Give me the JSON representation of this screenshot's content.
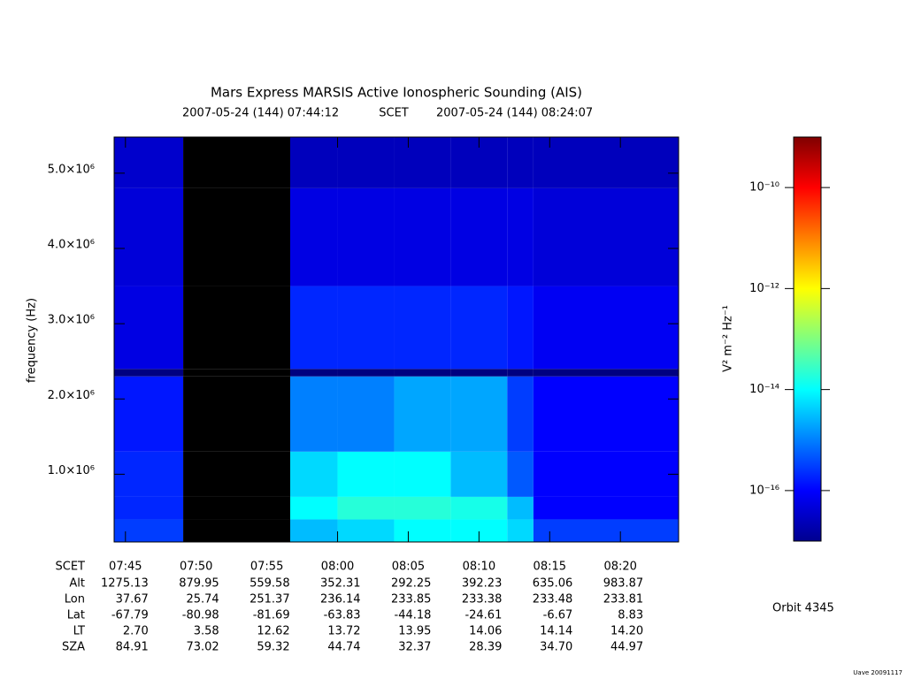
{
  "chart_data": {
    "type": "heatmap",
    "title": "Mars Express MARSIS Active Ionospheric Sounding (AIS)",
    "subtitle": {
      "start": "2007-05-24 (144) 07:44:12",
      "label": "SCET",
      "end": "2007-05-24 (144) 08:24:07"
    },
    "xlim": [
      "07:44:12",
      "08:24:07"
    ],
    "xticks": [
      "07:45",
      "07:50",
      "07:55",
      "08:00",
      "08:05",
      "08:10",
      "08:15",
      "08:20"
    ],
    "x_edges": [
      "07:44:12",
      "07:49:05",
      "07:56:39",
      "08:00:00",
      "08:04:00",
      "08:08:00",
      "08:12:00",
      "08:13:51",
      "08:24:07"
    ],
    "y_edges": [
      100000,
      400000,
      700000,
      1300000,
      2300000,
      2400000,
      3500000,
      4800000,
      5480000
    ],
    "ylabel": "frequency (Hz)",
    "ylim": [
      100000,
      5480000
    ],
    "yticks": [
      {
        "value": 1000000,
        "label": "1.0×10⁶"
      },
      {
        "value": 2000000,
        "label": "2.0×10⁶"
      },
      {
        "value": 3000000,
        "label": "3.0×10⁶"
      },
      {
        "value": 4000000,
        "label": "4.0×10⁶"
      },
      {
        "value": 5000000,
        "label": "5.0×10⁶"
      }
    ],
    "values": [
      [
        3e-16,
        null,
        3e-15,
        5e-15,
        1e-14,
        1e-14,
        5e-15,
        3e-16
      ],
      [
        2e-16,
        null,
        1e-14,
        2e-14,
        2e-14,
        1.5e-14,
        3e-15,
        1e-16
      ],
      [
        2e-16,
        null,
        5e-15,
        1e-14,
        1e-14,
        3e-15,
        5e-16,
        1e-16
      ],
      [
        1.5e-16,
        null,
        1e-15,
        1e-15,
        2e-15,
        2e-15,
        3e-16,
        1e-16
      ],
      [
        1e-17,
        null,
        1e-17,
        1e-17,
        1e-17,
        1e-17,
        1e-17,
        1e-17
      ],
      [
        6e-17,
        null,
        2e-16,
        2e-16,
        2e-16,
        2e-16,
        1.5e-16,
        8e-17
      ],
      [
        5e-17,
        null,
        6e-17,
        6e-17,
        6e-17,
        6e-17,
        6e-17,
        5e-17
      ],
      [
        4e-17,
        null,
        3e-17,
        3e-17,
        3e-17,
        3e-17,
        3e-17,
        3e-17
      ]
    ],
    "colorbar": {
      "label": "V² m⁻² Hz⁻¹",
      "scale": "log",
      "colormap": "jet",
      "zlim": [
        1e-17,
        1e-09
      ],
      "ticks": [
        {
          "value": 1e-10,
          "label": "10⁻¹⁰"
        },
        {
          "value": 1e-12,
          "label": "10⁻¹²"
        },
        {
          "value": 1e-14,
          "label": "10⁻¹⁴"
        },
        {
          "value": 1e-16,
          "label": "10⁻¹⁶"
        }
      ]
    }
  },
  "ephemeris": {
    "scet_label": "SCET",
    "rows": [
      {
        "label": "Alt",
        "values": [
          "1275.13",
          "879.95",
          "559.58",
          "352.31",
          "292.25",
          "392.23",
          "635.06",
          "983.87"
        ]
      },
      {
        "label": "Lon",
        "values": [
          "37.67",
          "25.74",
          "251.37",
          "236.14",
          "233.85",
          "233.38",
          "233.48",
          "233.81"
        ]
      },
      {
        "label": "Lat",
        "values": [
          "-67.79",
          "-80.98",
          "-81.69",
          "-63.83",
          "-44.18",
          "-24.61",
          "-6.67",
          "8.83"
        ]
      },
      {
        "label": "LT",
        "values": [
          "2.70",
          "3.58",
          "12.62",
          "13.72",
          "13.95",
          "14.06",
          "14.14",
          "14.20"
        ]
      },
      {
        "label": "SZA",
        "values": [
          "84.91",
          "73.02",
          "59.32",
          "44.74",
          "32.37",
          "28.39",
          "34.70",
          "44.97"
        ]
      }
    ]
  },
  "orbit": "Orbit 4345",
  "footer": "Uave 20091117"
}
